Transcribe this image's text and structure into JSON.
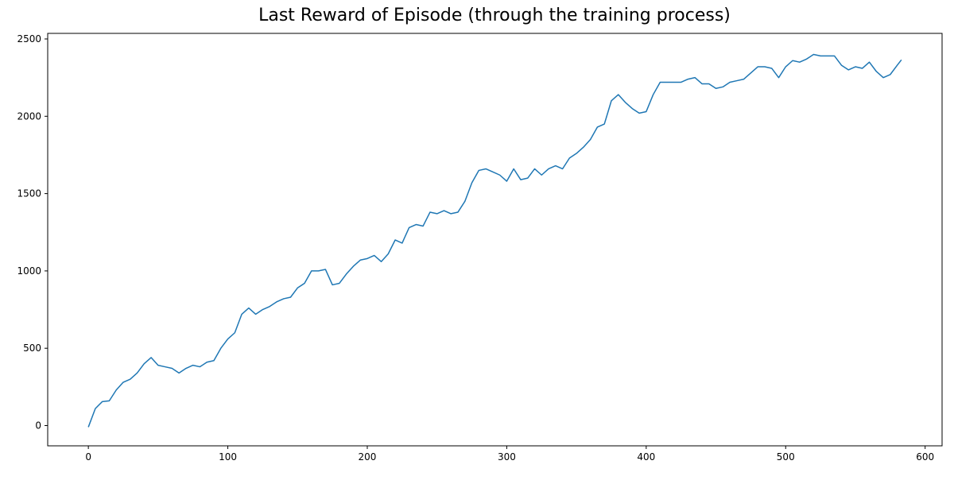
{
  "chart_data": {
    "type": "line",
    "title": "Last Reward of Episode (through the training process)",
    "x": [
      0,
      5,
      10,
      15,
      20,
      25,
      30,
      35,
      40,
      45,
      50,
      55,
      60,
      65,
      70,
      75,
      80,
      85,
      90,
      95,
      100,
      105,
      110,
      115,
      120,
      125,
      130,
      135,
      140,
      145,
      150,
      155,
      160,
      165,
      170,
      175,
      180,
      185,
      190,
      195,
      200,
      205,
      210,
      215,
      220,
      225,
      230,
      235,
      240,
      245,
      250,
      255,
      260,
      265,
      270,
      275,
      280,
      285,
      290,
      295,
      300,
      305,
      310,
      315,
      320,
      325,
      330,
      335,
      340,
      345,
      350,
      355,
      360,
      365,
      370,
      375,
      380,
      385,
      390,
      395,
      400,
      405,
      410,
      415,
      420,
      425,
      430,
      435,
      440,
      445,
      450,
      455,
      460,
      465,
      470,
      475,
      480,
      485,
      490,
      495,
      500,
      505,
      510,
      515,
      520,
      525,
      530,
      535,
      540,
      545,
      550,
      555,
      560,
      565,
      570,
      575,
      580,
      583
    ],
    "series": [
      {
        "color": "#1f77b4",
        "values": [
          -10,
          110,
          155,
          160,
          230,
          280,
          300,
          340,
          400,
          440,
          390,
          380,
          370,
          340,
          370,
          390,
          380,
          410,
          420,
          500,
          560,
          600,
          720,
          760,
          720,
          750,
          770,
          800,
          820,
          830,
          890,
          920,
          1000,
          1000,
          1010,
          910,
          920,
          980,
          1030,
          1070,
          1080,
          1100,
          1060,
          1110,
          1200,
          1180,
          1280,
          1300,
          1290,
          1380,
          1370,
          1390,
          1370,
          1380,
          1450,
          1570,
          1650,
          1660,
          1640,
          1620,
          1580,
          1660,
          1590,
          1600,
          1660,
          1620,
          1660,
          1680,
          1660,
          1730,
          1760,
          1800,
          1850,
          1930,
          1950,
          2100,
          2140,
          2090,
          2050,
          2020,
          2030,
          2140,
          2220,
          2220,
          2220,
          2220,
          2240,
          2250,
          2210,
          2210,
          2180,
          2190,
          2220,
          2230,
          2240,
          2280,
          2320,
          2320,
          2310,
          2250,
          2320,
          2360,
          2350,
          2370,
          2400,
          2390,
          2390,
          2390,
          2330,
          2300,
          2320,
          2310,
          2350,
          2290,
          2250,
          2270,
          2330,
          2365
        ]
      }
    ],
    "xlim": [
      -29.15,
      612.15
    ],
    "ylim": [
      -131,
      2536
    ],
    "xticks": [
      0,
      100,
      200,
      300,
      400,
      500,
      600
    ],
    "yticks": [
      0,
      500,
      1000,
      1500,
      2000,
      2500
    ],
    "grid": false
  }
}
